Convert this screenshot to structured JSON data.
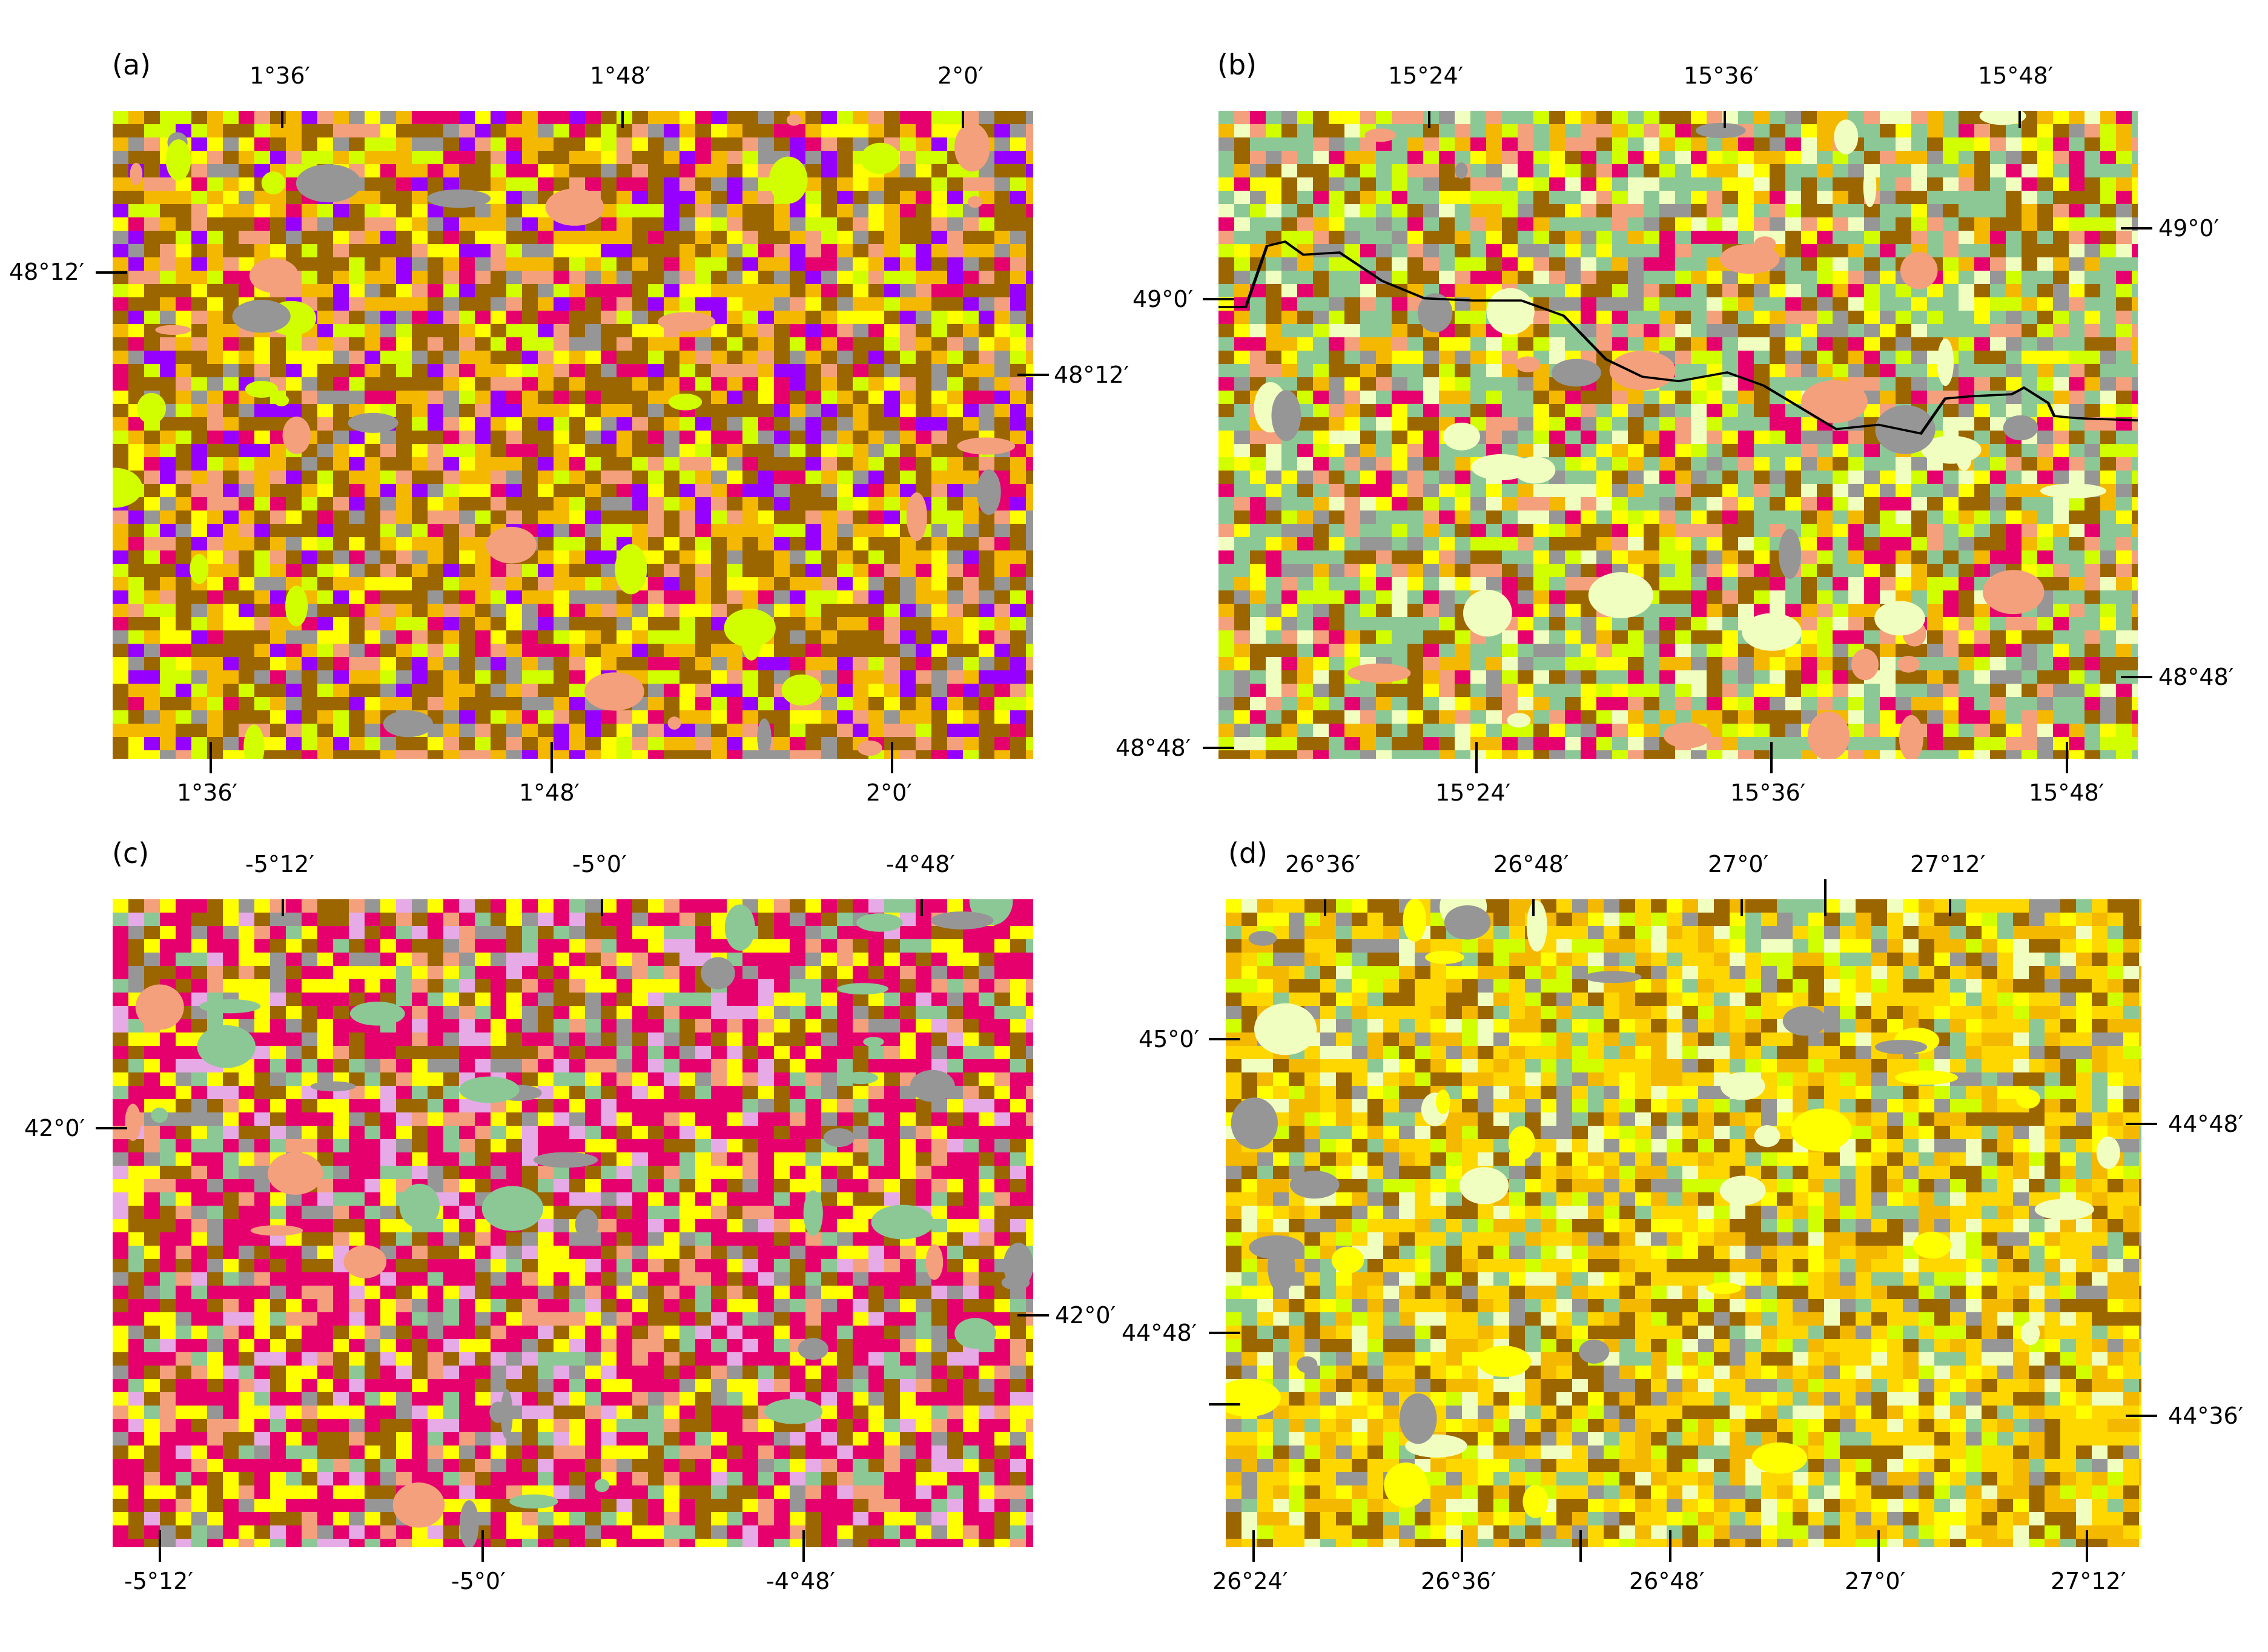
{
  "colors": {
    "winter_cereal": "#9b6500",
    "maize": "#f5b800",
    "rapeseed": "#ffff00",
    "sunflower": "#ffd700",
    "sugar_beet": "#e6006e",
    "grassland": "#d2ff00",
    "woodland": "#8cc895",
    "artificial": "#969696",
    "legumes": "#9600ff",
    "orchard": "#f5a07d",
    "shrubland": "#f0ffc0",
    "fallow": "#e6aae6",
    "water": "#ffffff",
    "border": "#000000"
  },
  "panels": [
    {
      "label": "(a)",
      "palette": [
        "winter_cereal",
        "winter_cereal",
        "winter_cereal",
        "maize",
        "maize",
        "rapeseed",
        "sugar_beet",
        "legumes",
        "grassland",
        "orchard",
        "artificial"
      ],
      "top_ticks": [
        "1°36′",
        "1°48′",
        "2°0′"
      ],
      "bottom_ticks": [
        "1°36′",
        "1°48′",
        "2°0′"
      ],
      "left_ticks": [
        "48°12′"
      ],
      "right_ticks": [
        "48°12′"
      ]
    },
    {
      "label": "(b)",
      "palette": [
        "woodland",
        "woodland",
        "woodland",
        "winter_cereal",
        "winter_cereal",
        "maize",
        "grassland",
        "sugar_beet",
        "rapeseed",
        "orchard",
        "artificial",
        "shrubland"
      ],
      "top_ticks": [
        "15°24′",
        "15°36′",
        "15°48′"
      ],
      "bottom_ticks": [
        "15°24′",
        "15°36′",
        "15°48′"
      ],
      "left_ticks": [
        "49°0′",
        "48°48′"
      ],
      "right_ticks": [
        "49°0′",
        "48°48′"
      ]
    },
    {
      "label": "(c)",
      "palette": [
        "sugar_beet",
        "sugar_beet",
        "sugar_beet",
        "sugar_beet",
        "winter_cereal",
        "winter_cereal",
        "rapeseed",
        "rapeseed",
        "fallow",
        "artificial",
        "woodland",
        "orchard"
      ],
      "top_ticks": [
        "-5°12′",
        "-5°0′",
        "-4°48′"
      ],
      "bottom_ticks": [
        "-5°12′",
        "-5°0′",
        "-4°48′"
      ],
      "left_ticks": [
        "42°0′"
      ],
      "right_ticks": [
        "42°0′"
      ]
    },
    {
      "label": "(d)",
      "palette": [
        "sunflower",
        "sunflower",
        "sunflower",
        "maize",
        "maize",
        "winter_cereal",
        "winter_cereal",
        "grassland",
        "woodland",
        "artificial",
        "shrubland",
        "rapeseed"
      ],
      "top_ticks": [
        "26°36′",
        "26°48′",
        "27°0′",
        "27°12′"
      ],
      "bottom_ticks": [
        "26°24′",
        "26°36′",
        "26°48′",
        "27°0′",
        "27°12′"
      ],
      "left_ticks": [
        "45°0′",
        "44°48′"
      ],
      "right_ticks": [
        "44°48′",
        "44°36′"
      ]
    }
  ]
}
